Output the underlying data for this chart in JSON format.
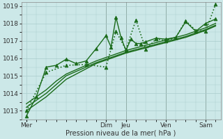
{
  "background_color": "#cce8e8",
  "grid_color": "#aacccc",
  "line_color": "#1a6b1a",
  "marker_color": "#1a6b1a",
  "xlabel": "Pression niveau de la mer( hPa )",
  "xlabel_fontsize": 7,
  "tick_fontsize": 6.5,
  "ylim": [
    1012.5,
    1019.2
  ],
  "yticks": [
    1013,
    1014,
    1015,
    1016,
    1017,
    1018,
    1019
  ],
  "x_day_labels": [
    "Mer",
    "Dim",
    "Jeu",
    "Ven",
    "Sam"
  ],
  "x_day_positions": [
    0,
    16,
    20,
    28,
    36
  ],
  "xlim": [
    -1,
    39
  ],
  "series": [
    {
      "x": [
        0,
        2,
        4,
        6,
        8,
        10,
        12,
        14,
        16,
        18,
        20,
        22,
        24,
        26,
        28,
        30,
        32,
        34,
        36,
        38
      ],
      "y": [
        1013.0,
        1013.4,
        1013.8,
        1014.3,
        1014.8,
        1015.1,
        1015.4,
        1015.7,
        1015.9,
        1016.1,
        1016.3,
        1016.45,
        1016.6,
        1016.75,
        1016.9,
        1017.05,
        1017.2,
        1017.4,
        1017.6,
        1017.85
      ],
      "linestyle": "-",
      "linewidth": 1.0,
      "marker": null
    },
    {
      "x": [
        0,
        2,
        4,
        6,
        8,
        10,
        12,
        14,
        16,
        18,
        20,
        22,
        24,
        26,
        28,
        30,
        32,
        34,
        36,
        38
      ],
      "y": [
        1013.2,
        1013.6,
        1014.0,
        1014.5,
        1015.0,
        1015.25,
        1015.5,
        1015.75,
        1015.95,
        1016.15,
        1016.35,
        1016.5,
        1016.65,
        1016.8,
        1016.95,
        1017.1,
        1017.25,
        1017.45,
        1017.65,
        1017.9
      ],
      "linestyle": "-",
      "linewidth": 1.0,
      "marker": null
    },
    {
      "x": [
        0,
        2,
        4,
        6,
        8,
        10,
        12,
        14,
        16,
        18,
        20,
        22,
        24,
        26,
        28,
        30,
        32,
        34,
        36,
        38
      ],
      "y": [
        1013.4,
        1013.8,
        1014.2,
        1014.7,
        1015.1,
        1015.35,
        1015.6,
        1015.85,
        1016.05,
        1016.25,
        1016.45,
        1016.6,
        1016.75,
        1016.9,
        1017.05,
        1017.2,
        1017.35,
        1017.55,
        1017.75,
        1018.0
      ],
      "linestyle": "-",
      "linewidth": 1.0,
      "marker": null
    },
    {
      "x": [
        0,
        4,
        8,
        12,
        16,
        18,
        20,
        22,
        24,
        26,
        28,
        30,
        32,
        34,
        36,
        38
      ],
      "y": [
        1013.0,
        1015.2,
        1015.6,
        1015.65,
        1015.5,
        1017.55,
        1016.5,
        1018.2,
        1016.5,
        1017.1,
        1017.0,
        1017.2,
        1018.15,
        1017.6,
        1017.55,
        1019.1
      ],
      "linestyle": ":",
      "linewidth": 1.2,
      "marker": "^",
      "markersize": 3.5
    },
    {
      "x": [
        0,
        2,
        4,
        6,
        8,
        10,
        12,
        14,
        16,
        17,
        18,
        19,
        20,
        21,
        22,
        23,
        24,
        26,
        28,
        30,
        32,
        34,
        36,
        38
      ],
      "y": [
        1012.7,
        1013.8,
        1015.5,
        1015.6,
        1015.95,
        1015.7,
        1015.85,
        1016.55,
        1017.3,
        1016.65,
        1018.35,
        1017.2,
        1016.45,
        1017.1,
        1016.85,
        1016.85,
        1016.95,
        1017.15,
        1017.1,
        1017.2,
        1018.1,
        1017.55,
        1018.0,
        1018.25
      ],
      "linestyle": "-",
      "linewidth": 1.0,
      "marker": "^",
      "markersize": 3.5
    }
  ]
}
